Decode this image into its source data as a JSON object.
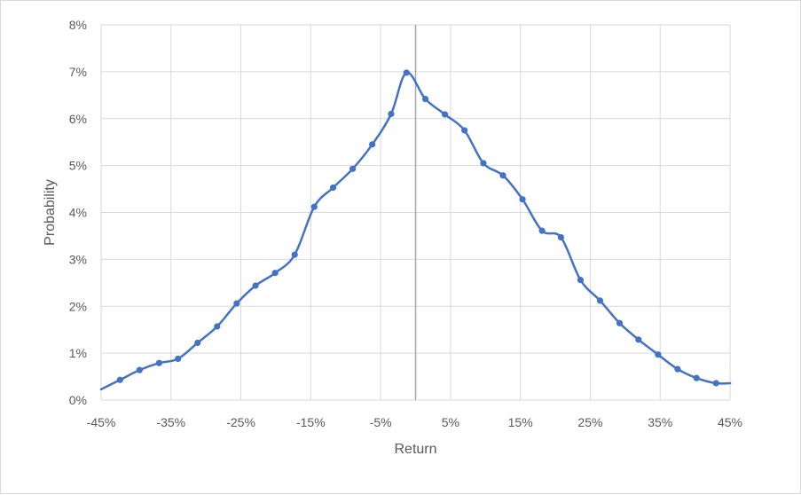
{
  "chart_data": {
    "type": "line",
    "xlabel": "Return",
    "ylabel": "Probability",
    "xlim": [
      -45,
      45
    ],
    "ylim": [
      0,
      8
    ],
    "x_ticks": [
      -45,
      -35,
      -25,
      -15,
      -5,
      5,
      15,
      25,
      35,
      45
    ],
    "x_tick_labels": [
      "-45%",
      "-35%",
      "-25%",
      "-15%",
      "-5%",
      "5%",
      "15%",
      "25%",
      "35%",
      "45%"
    ],
    "y_ticks": [
      0,
      1,
      2,
      3,
      4,
      5,
      6,
      7,
      8
    ],
    "y_tick_labels": [
      "0%",
      "1%",
      "2%",
      "3%",
      "4%",
      "5%",
      "6%",
      "7%",
      "8%"
    ],
    "grid": true,
    "vertical_reference_x": 0,
    "line_color": "#4472c4",
    "grid_color": "#d9d9d9",
    "reference_line_color": "#a6a6a6",
    "series": [
      {
        "x": [
          -45,
          -42.3,
          -39.5,
          -36.7,
          -34.0,
          -31.2,
          -28.4,
          -25.6,
          -22.9,
          -20.1,
          -17.3,
          -14.5,
          -11.8,
          -9.0,
          -6.2,
          -3.5,
          -1.3,
          1.4,
          4.2,
          7.0,
          9.7,
          12.5,
          15.3,
          18.1,
          20.8,
          23.6,
          26.4,
          29.2,
          31.9,
          34.7,
          37.5,
          40.2,
          43.0,
          45
        ],
        "y": [
          0.23,
          0.43,
          0.64,
          0.79,
          0.88,
          1.22,
          1.57,
          2.06,
          2.44,
          2.71,
          3.1,
          4.12,
          4.53,
          4.93,
          5.45,
          6.1,
          6.98,
          6.42,
          6.09,
          5.75,
          5.05,
          4.79,
          4.28,
          3.61,
          3.47,
          2.56,
          2.12,
          1.64,
          1.29,
          0.97,
          0.66,
          0.47,
          0.36,
          0.36
        ],
        "marker_x": [
          -42.3,
          -39.5,
          -36.7,
          -34.0,
          -31.2,
          -28.4,
          -25.6,
          -22.9,
          -20.1,
          -17.3,
          -14.5,
          -11.8,
          -9.0,
          -6.2,
          -3.5,
          -1.3,
          1.4,
          4.2,
          7.0,
          9.7,
          12.5,
          15.3,
          18.1,
          20.8,
          23.6,
          26.4,
          29.2,
          31.9,
          34.7,
          37.5,
          40.2,
          43.0
        ]
      }
    ]
  }
}
